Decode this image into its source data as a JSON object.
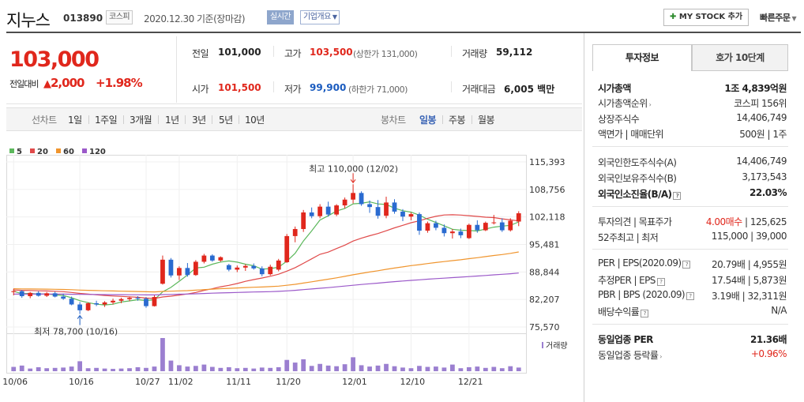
{
  "header": {
    "title": "지누스",
    "code": "013890",
    "market": "코스피",
    "date": "2020.12.30 기준(장마감)",
    "realtime_label": "실시간",
    "company_label": "기업개요",
    "mystock_label": "MY STOCK 추가",
    "quick_order_label": "빠른주문"
  },
  "quote": {
    "price": "103,000",
    "change_label": "전일대비",
    "change_value": "2,000",
    "change_pct": "+1.98%",
    "prev_close_label": "전일",
    "prev_close": "101,000",
    "high_label": "고가",
    "high": "103,500",
    "upper_limit": "(상한가 131,000)",
    "volume_label": "거래량",
    "volume": "59,112",
    "open_label": "시가",
    "open": "101,500",
    "low_label": "저가",
    "low": "99,900",
    "lower_limit": "(하한가 71,000)",
    "amount_label": "거래대금",
    "amount": "6,005",
    "amount_unit": "백만"
  },
  "period_tabs": {
    "line_chart": "선차트",
    "items": [
      "1일",
      "1주일",
      "3개월",
      "1년",
      "3년",
      "5년",
      "10년"
    ],
    "candle_chart": "봉차트",
    "candle_items": [
      "일봉",
      "주봉",
      "월봉"
    ],
    "selected_candle": "일봉"
  },
  "legend": [
    {
      "label": "5",
      "color": "#5cb85c"
    },
    {
      "label": "20",
      "color": "#e04a4a"
    },
    {
      "label": "60",
      "color": "#f0952e"
    },
    {
      "label": "120",
      "color": "#9b59c9"
    }
  ],
  "volume_legend": "거래량",
  "chart_data": {
    "type": "candlestick",
    "y_ticks": [
      "115,393",
      "108,756",
      "102,118",
      "95,481",
      "88,844",
      "82,207",
      "75,570"
    ],
    "ylim": [
      75570,
      115393
    ],
    "x_ticks": [
      "10/06",
      "10/16",
      "10/27",
      "11/02",
      "11/11",
      "11/20",
      "12/01",
      "12/10",
      "12/21"
    ],
    "max_annotation": "최고 110,000 (12/02)",
    "min_annotation": "최저 78,700 (10/16)",
    "candles": [
      [
        84000,
        84800,
        83200,
        84200
      ],
      [
        84200,
        84500,
        82600,
        83000
      ],
      [
        83000,
        84000,
        82500,
        83800
      ],
      [
        83800,
        84200,
        82900,
        83100
      ],
      [
        83100,
        84000,
        82800,
        83700
      ],
      [
        83700,
        84100,
        82700,
        82900
      ],
      [
        82900,
        83600,
        82100,
        82400
      ],
      [
        82400,
        82900,
        80800,
        81000
      ],
      [
        81000,
        81600,
        78700,
        79600
      ],
      [
        79600,
        81500,
        79400,
        81300
      ],
      [
        81300,
        81900,
        80600,
        81000
      ],
      [
        81000,
        81800,
        80400,
        81500
      ],
      [
        81500,
        82400,
        81000,
        81900
      ],
      [
        81900,
        82600,
        81300,
        82300
      ],
      [
        82300,
        82900,
        81800,
        82600
      ],
      [
        82600,
        83000,
        81900,
        82400
      ],
      [
        82400,
        82800,
        80200,
        80600
      ],
      [
        80600,
        83200,
        80500,
        82800
      ],
      [
        86000,
        92800,
        85800,
        91800
      ],
      [
        91800,
        92200,
        87500,
        88000
      ],
      [
        88000,
        90200,
        86900,
        89800
      ],
      [
        89800,
        91000,
        87700,
        88100
      ],
      [
        88100,
        91700,
        87900,
        91300
      ],
      [
        91300,
        93200,
        90900,
        92800
      ],
      [
        92800,
        93100,
        91300,
        91600
      ],
      [
        91600,
        92600,
        91300,
        92400
      ],
      [
        90500,
        90800,
        89000,
        89400
      ],
      [
        89400,
        90400,
        88800,
        89900
      ],
      [
        89900,
        90700,
        89100,
        90300
      ],
      [
        90300,
        90900,
        89400,
        89700
      ],
      [
        89700,
        90200,
        87800,
        88300
      ],
      [
        88300,
        90600,
        88000,
        90100
      ],
      [
        89400,
        92000,
        89000,
        91600
      ],
      [
        91200,
        98000,
        91000,
        97500
      ],
      [
        97500,
        99800,
        96000,
        99200
      ],
      [
        99200,
        103800,
        98500,
        103200
      ],
      [
        103200,
        104400,
        101800,
        102300
      ],
      [
        102300,
        105200,
        101800,
        104600
      ],
      [
        104600,
        105800,
        102200,
        102700
      ],
      [
        102700,
        105200,
        102300,
        104900
      ],
      [
        104900,
        106800,
        104200,
        106300
      ],
      [
        106300,
        110000,
        105400,
        107900
      ],
      [
        107900,
        108300,
        104800,
        105200
      ],
      [
        105200,
        106100,
        103100,
        104500
      ],
      [
        104500,
        106200,
        101700,
        102400
      ],
      [
        102400,
        107000,
        101800,
        105600
      ],
      [
        105600,
        106400,
        102900,
        103400
      ],
      [
        103400,
        104000,
        101100,
        102200
      ],
      [
        102200,
        103200,
        101300,
        102800
      ],
      [
        102800,
        103200,
        97800,
        98800
      ],
      [
        98800,
        101000,
        98300,
        100600
      ],
      [
        100600,
        101200,
        98900,
        99500
      ],
      [
        99500,
        100300,
        97400,
        98200
      ],
      [
        98200,
        99200,
        96900,
        98600
      ],
      [
        98600,
        99300,
        97000,
        97700
      ],
      [
        97000,
        100500,
        96800,
        100200
      ],
      [
        100200,
        101300,
        98300,
        98900
      ],
      [
        98900,
        101000,
        98700,
        100700
      ],
      [
        100700,
        102600,
        100300,
        100800
      ],
      [
        100800,
        101800,
        98500,
        98900
      ],
      [
        98900,
        101800,
        98600,
        101200
      ],
      [
        101000,
        103500,
        99900,
        103000
      ]
    ],
    "volumes": [
      13,
      17,
      8,
      12,
      9,
      10,
      11,
      14,
      30,
      9,
      10,
      8,
      7,
      8,
      9,
      12,
      10,
      14,
      100,
      32,
      18,
      14,
      16,
      20,
      13,
      10,
      12,
      9,
      10,
      8,
      11,
      10,
      12,
      34,
      26,
      36,
      16,
      22,
      17,
      15,
      21,
      42,
      18,
      14,
      17,
      22,
      15,
      11,
      9,
      16,
      13,
      14,
      11,
      20,
      9,
      12,
      14,
      10,
      13,
      9,
      15,
      11
    ]
  },
  "right_panel": {
    "tab_info": "투자정보",
    "tab_orderbook": "호가 10단계",
    "rows1": [
      {
        "label": "시가총액",
        "value": "1조 4,839억원"
      },
      {
        "label": "시가총액순위",
        "value": "코스피 156위"
      },
      {
        "label": "상장주식수",
        "value": "14,406,749"
      },
      {
        "label": "액면가 | 매매단위",
        "value": "500원 | 1주"
      }
    ],
    "rows2": [
      {
        "label": "외국인한도주식수(A)",
        "value": "14,406,749"
      },
      {
        "label": "외국인보유주식수(B)",
        "value": "3,173,543"
      },
      {
        "label": "외국인소진율(B/A)",
        "value": "22.03%"
      }
    ],
    "rows3": [
      {
        "label": "투자의견 | 목표주가",
        "value_a": "4.00매수",
        "value_b": "125,625"
      },
      {
        "label": "52주최고 | 최저",
        "value": "115,000 | 39,000"
      }
    ],
    "rows4": [
      {
        "label": "PER | EPS(2020.09)",
        "value": "20.79배 | 4,955원"
      },
      {
        "label": "추정PER | EPS",
        "value": "17.54배 | 5,873원"
      },
      {
        "label": "PBR | BPS (2020.09)",
        "value": "3.19배 | 32,311원"
      },
      {
        "label": "배당수익률",
        "value": "N/A"
      }
    ],
    "rows5": [
      {
        "label": "동일업종 PER",
        "value": "21.36배"
      },
      {
        "label": "동일업종 등락률",
        "value": "+0.96%"
      }
    ]
  }
}
